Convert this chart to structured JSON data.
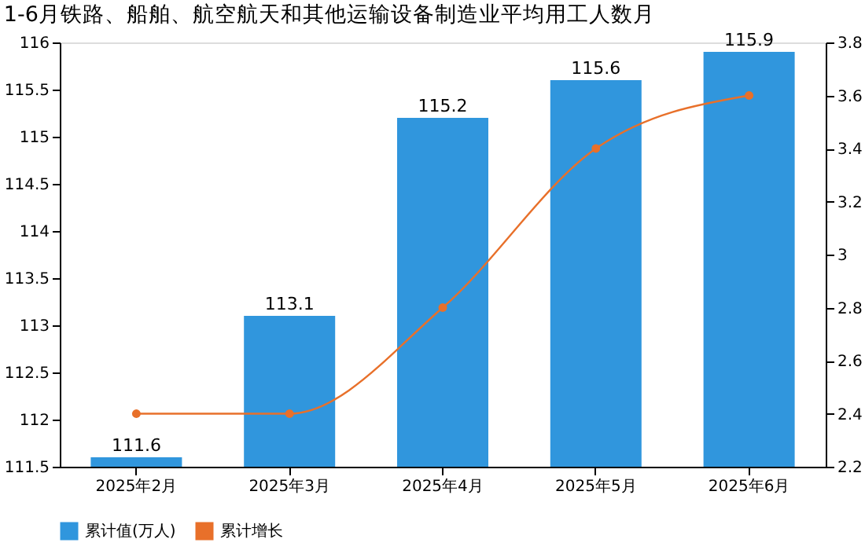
{
  "chart_data": {
    "type": "bar",
    "title": "1-6月铁路、船舶、航空航天和其他运输设备制造业平均用工人数月",
    "categories": [
      "2025年2月",
      "2025年3月",
      "2025年4月",
      "2025年5月",
      "2025年6月"
    ],
    "series": [
      {
        "name": "累计值(万人)",
        "color": "#3096dd",
        "values": [
          111.6,
          113.1,
          115.2,
          115.6,
          115.9
        ],
        "value_labels": [
          "111.6",
          "113.1",
          "115.2",
          "115.6",
          "115.9"
        ]
      },
      {
        "name": "累计增长",
        "type": "line",
        "axis": "y2",
        "color": "#e8702a",
        "marker": "circle",
        "values": [
          2.4,
          2.4,
          2.8,
          3.4,
          3.6
        ]
      }
    ],
    "ylim": [
      111.5,
      116
    ],
    "yticks": [
      111.5,
      112,
      112.5,
      113,
      113.5,
      114,
      114.5,
      115,
      115.5,
      116
    ],
    "y2lim": [
      2.2,
      3.8
    ],
    "y2ticks": [
      2.2,
      2.4,
      2.6,
      2.8,
      3,
      3.2,
      3.4,
      3.6,
      3.8
    ],
    "grid": false,
    "legend": "bottom left"
  }
}
